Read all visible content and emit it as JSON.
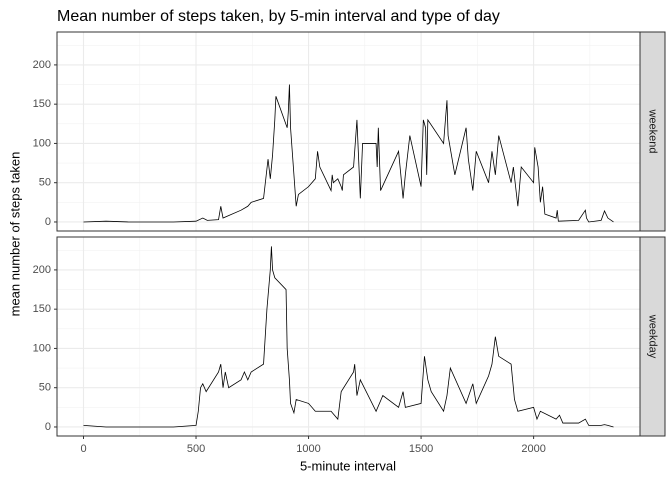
{
  "chart_data": {
    "type": "line",
    "title": "Mean number of steps taken, by 5-min interval and type of day",
    "xlabel": "5-minute interval",
    "ylabel": "mean number of steps taken",
    "xlim": [
      -117.75,
      2472.75
    ],
    "xticks": [
      0,
      500,
      1000,
      1500,
      2000
    ],
    "minor_xticks": [
      250,
      750,
      1250,
      1750,
      2250
    ],
    "ylim": [
      -11.5,
      241.9
    ],
    "yticks": [
      0,
      50,
      100,
      150,
      200
    ],
    "minor_yticks": [
      25,
      75,
      125,
      175,
      225
    ],
    "color": "#000000",
    "grid": true,
    "facets": [
      {
        "name": "weekend",
        "x": [
          0,
          100,
          200,
          300,
          400,
          500,
          530,
          550,
          600,
          610,
          620,
          700,
          730,
          745,
          800,
          820,
          830,
          840,
          850,
          855,
          905,
          910,
          915,
          920,
          930,
          945,
          955,
          1000,
          1030,
          1040,
          1050,
          1100,
          1105,
          1110,
          1130,
          1145,
          1150,
          1155,
          1200,
          1215,
          1230,
          1240,
          1300,
          1305,
          1310,
          1320,
          1400,
          1420,
          1430,
          1450,
          1500,
          1510,
          1520,
          1525,
          1530,
          1600,
          1615,
          1620,
          1650,
          1700,
          1710,
          1730,
          1745,
          1800,
          1815,
          1830,
          1845,
          1900,
          1910,
          1930,
          1945,
          2000,
          2005,
          2020,
          2030,
          2040,
          2050,
          2100,
          2105,
          2110,
          2200,
          2230,
          2235,
          2245,
          2300,
          2315,
          2330,
          2355
        ],
        "values": [
          0,
          1,
          0,
          0,
          0,
          1,
          5,
          2,
          3,
          20,
          5,
          15,
          20,
          25,
          30,
          80,
          55,
          85,
          130,
          160,
          120,
          140,
          175,
          120,
          80,
          20,
          35,
          45,
          55,
          90,
          70,
          40,
          60,
          50,
          55,
          45,
          40,
          60,
          70,
          130,
          30,
          100,
          100,
          70,
          120,
          40,
          90,
          30,
          60,
          110,
          45,
          130,
          120,
          60,
          130,
          100,
          155,
          110,
          60,
          120,
          80,
          40,
          90,
          50,
          90,
          60,
          110,
          50,
          70,
          20,
          70,
          50,
          95,
          70,
          25,
          45,
          10,
          5,
          15,
          1,
          2,
          15,
          5,
          0,
          2,
          14,
          5,
          0
        ]
      },
      {
        "name": "weekday",
        "x": [
          0,
          100,
          200,
          300,
          400,
          500,
          510,
          520,
          530,
          545,
          600,
          610,
          620,
          630,
          645,
          700,
          715,
          730,
          745,
          800,
          815,
          830,
          835,
          840,
          850,
          900,
          905,
          910,
          915,
          920,
          935,
          945,
          1000,
          1030,
          1100,
          1130,
          1145,
          1200,
          1205,
          1215,
          1230,
          1300,
          1330,
          1400,
          1420,
          1430,
          1500,
          1515,
          1530,
          1545,
          1600,
          1615,
          1630,
          1700,
          1730,
          1745,
          1800,
          1815,
          1830,
          1845,
          1900,
          1915,
          1930,
          2000,
          2015,
          2030,
          2100,
          2115,
          2130,
          2200,
          2230,
          2245,
          2300,
          2315,
          2330,
          2355
        ],
        "values": [
          2,
          0,
          0,
          0,
          0,
          2,
          20,
          50,
          55,
          45,
          70,
          80,
          50,
          70,
          50,
          60,
          70,
          60,
          70,
          80,
          150,
          200,
          230,
          200,
          190,
          175,
          100,
          80,
          60,
          30,
          18,
          35,
          30,
          20,
          20,
          10,
          45,
          70,
          80,
          40,
          60,
          20,
          40,
          25,
          45,
          25,
          30,
          90,
          60,
          45,
          20,
          40,
          75,
          30,
          55,
          30,
          65,
          80,
          115,
          90,
          80,
          35,
          20,
          25,
          10,
          20,
          10,
          15,
          5,
          5,
          10,
          2,
          2,
          3,
          2,
          0
        ]
      }
    ]
  }
}
